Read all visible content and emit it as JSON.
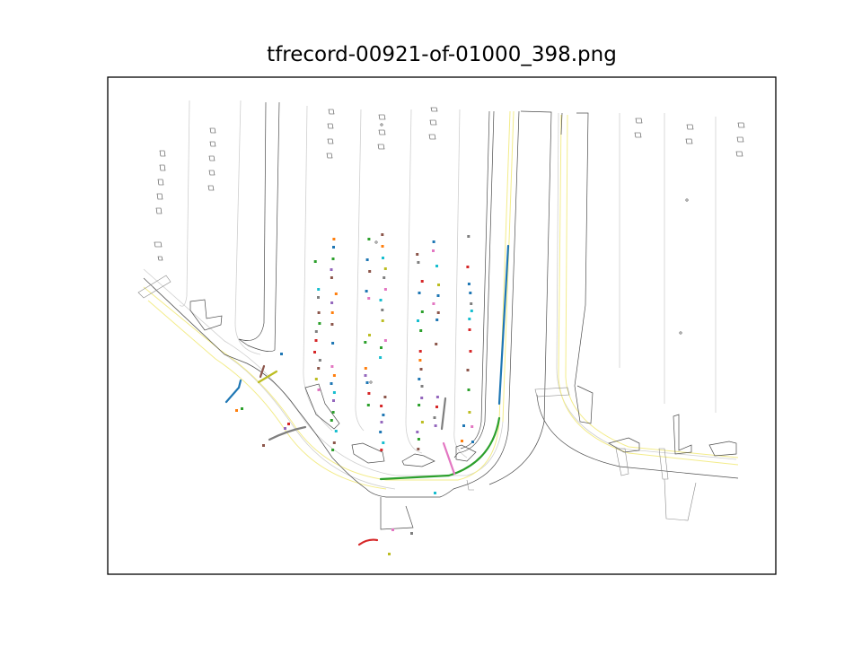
{
  "figure": {
    "title": "tfrecord-00921-of-01000_398.png"
  },
  "legend": {
    "lane_center_color": "#f5f0a0",
    "road_line_color": "#d0d0d0",
    "road_edge_color": "#555555",
    "crosswalk_color": "#777777",
    "agent_colors": [
      "#1f77b4",
      "#ff7f0e",
      "#2ca02c",
      "#d62728",
      "#9467bd",
      "#8c564b",
      "#e377c2",
      "#7f7f7f",
      "#bcbd22",
      "#17becf"
    ]
  }
}
